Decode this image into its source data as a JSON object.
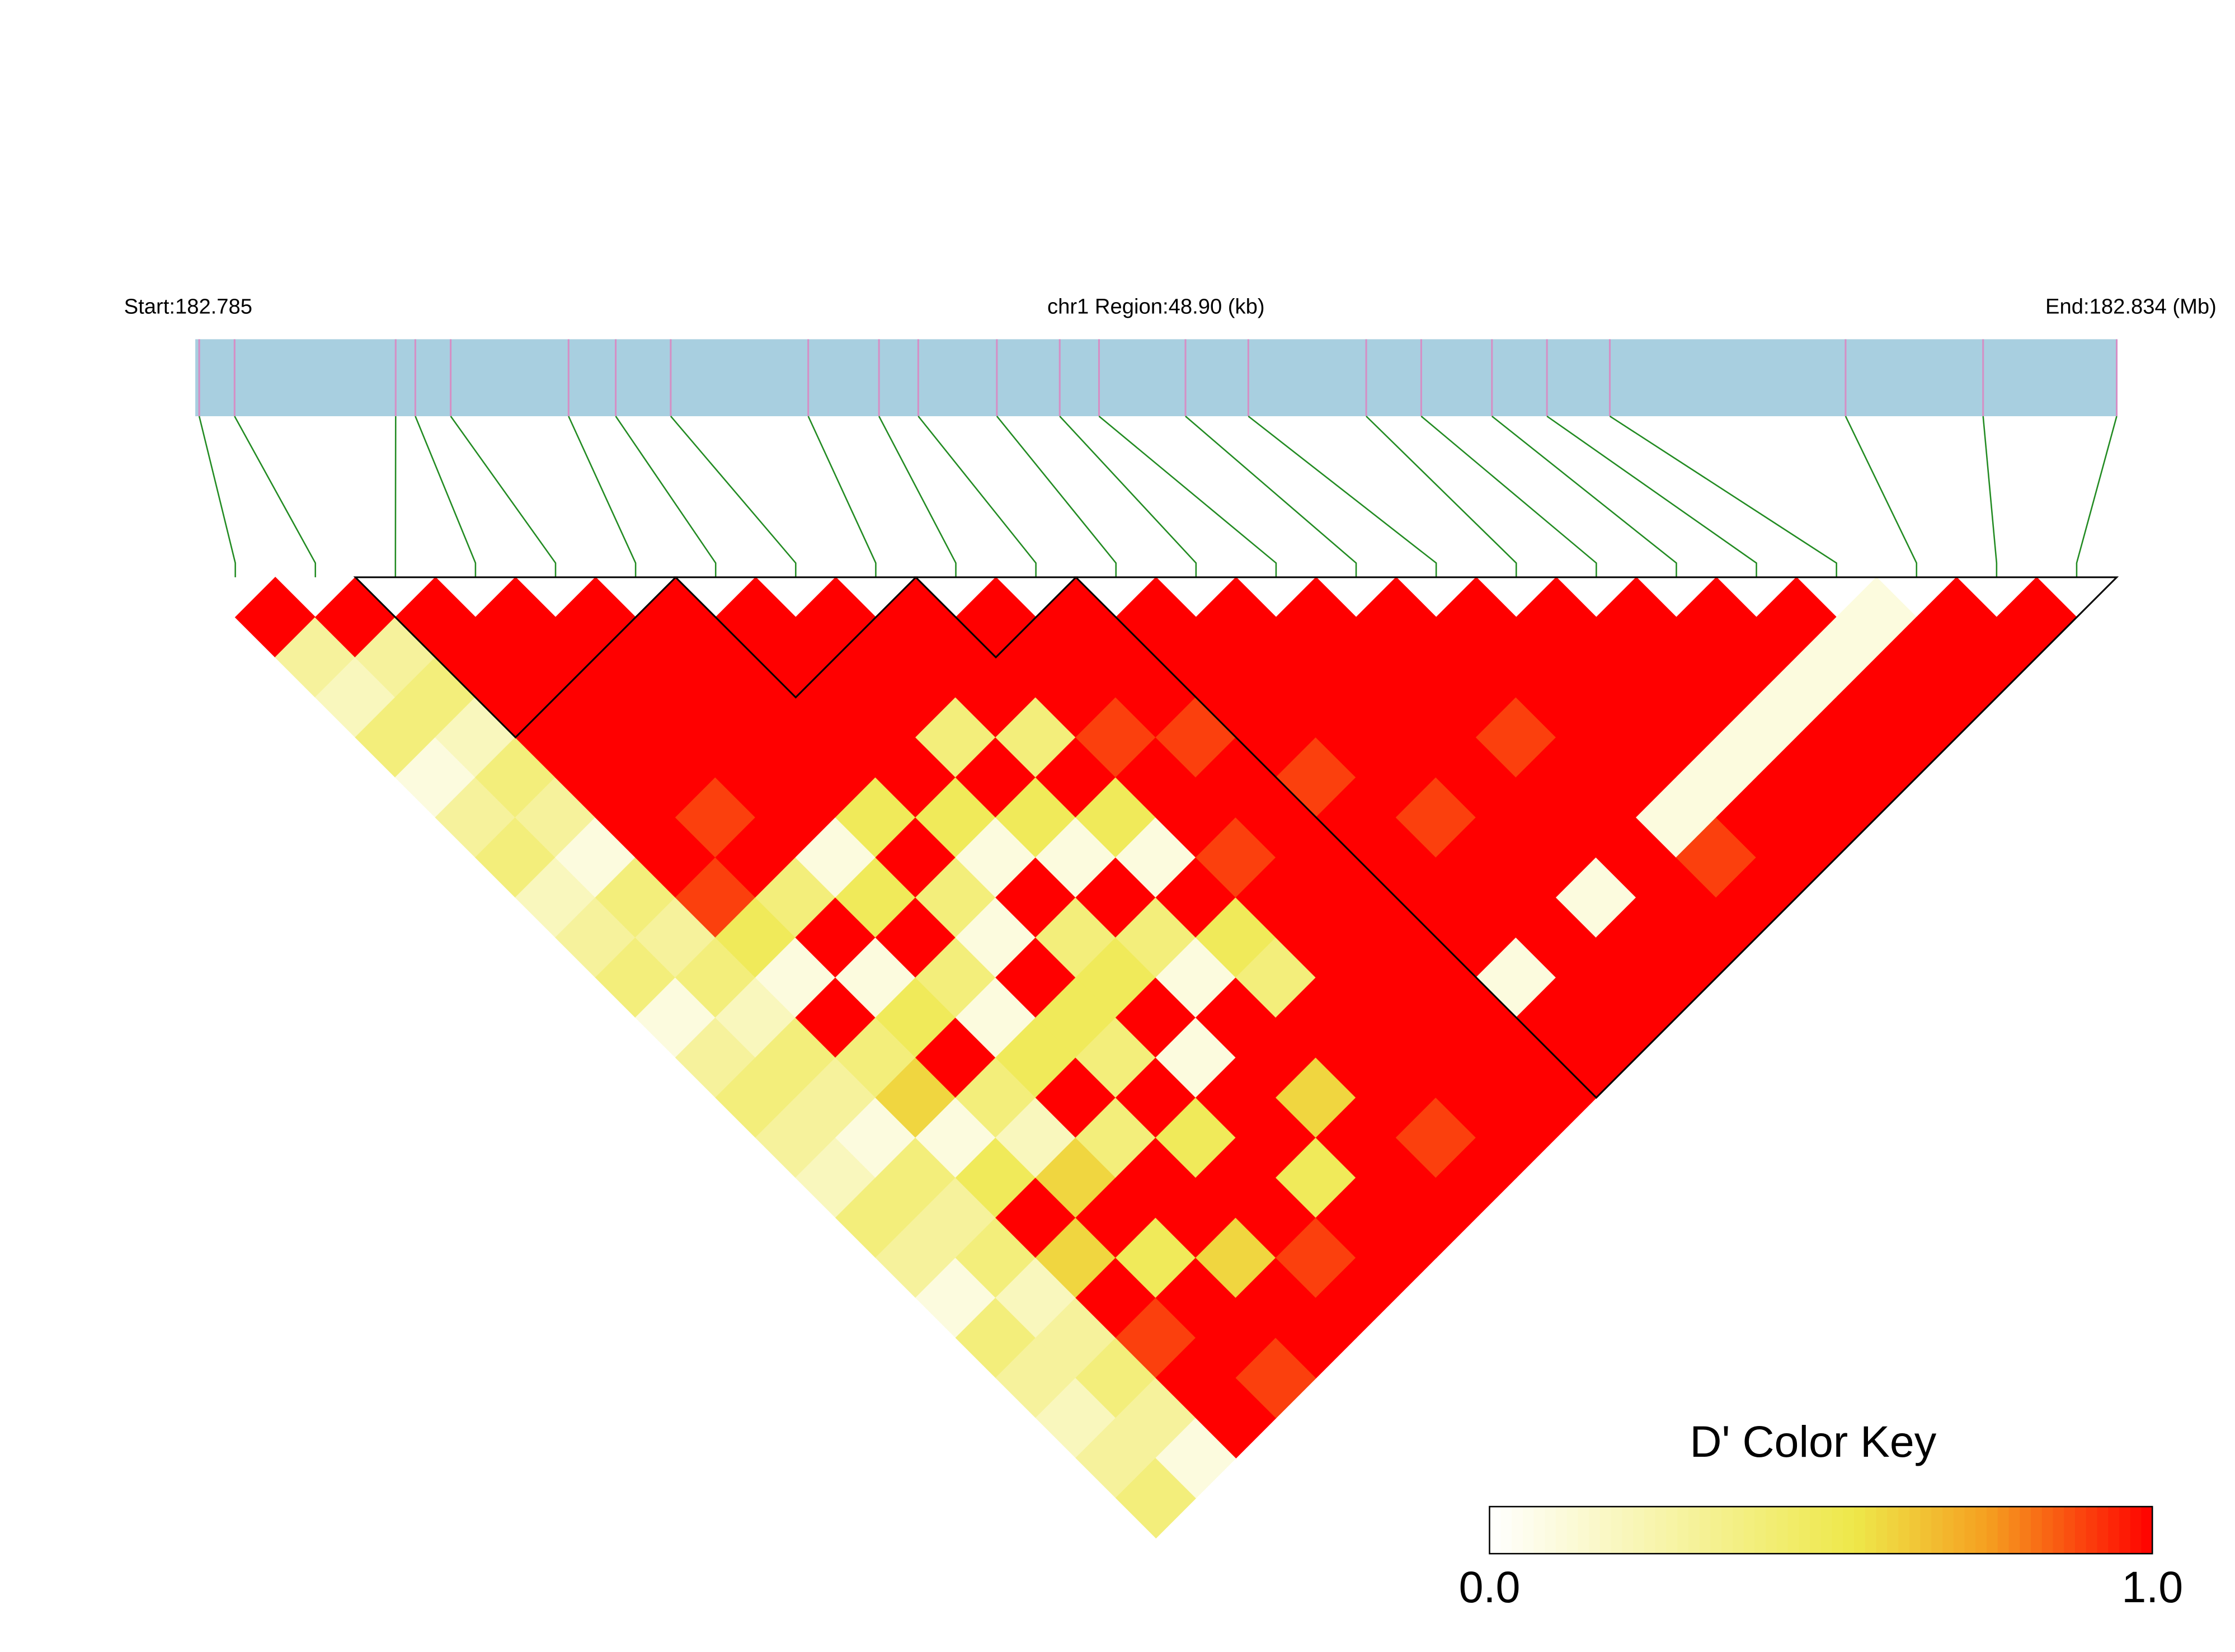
{
  "chart_data": {
    "type": "ld-heatmap",
    "start_label": "Start:182.785",
    "region_label": "chr1 Region:48.90 (kb)",
    "end_label": "End:182.834 (Mb)",
    "key_title": "D' Color Key",
    "xlim": [
      0,
      48.9
    ],
    "positions": [
      0.1,
      1.0,
      5.1,
      5.6,
      6.5,
      9.5,
      10.7,
      12.1,
      15.6,
      17.4,
      18.4,
      20.4,
      22.0,
      23.0,
      25.2,
      26.8,
      29.8,
      31.2,
      33.0,
      34.4,
      36.0,
      42.0,
      45.5,
      48.9
    ],
    "dprime": [
      [
        1.0,
        0.3,
        0.2,
        0.4,
        0.1,
        0.3,
        0.4,
        0.2,
        0.3,
        0.4,
        0.1,
        0.3,
        0.4,
        0.3,
        0.2,
        0.4,
        0.3,
        0.1,
        0.4,
        0.3,
        0.2,
        0.3,
        0.4
      ],
      [
        1.0,
        0.3,
        0.4,
        0.2,
        0.4,
        0.3,
        0.1,
        0.4,
        0.3,
        0.4,
        0.2,
        0.4,
        0.3,
        0.1,
        0.4,
        0.3,
        0.4,
        0.2,
        0.3,
        0.4,
        0.3,
        0.1
      ],
      [
        1.0,
        1.0,
        1.0,
        1.0,
        1.0,
        1.0,
        1.0,
        0.9,
        0.5,
        0.1,
        1.0,
        0.4,
        0.6,
        0.1,
        0.5,
        1.0,
        0.6,
        1.0,
        0.9,
        1.0,
        1.0
      ],
      [
        1.0,
        1.0,
        1.0,
        1.0,
        1.0,
        0.9,
        1.0,
        0.4,
        1.0,
        0.1,
        0.5,
        1.0,
        0.4,
        0.2,
        0.6,
        1.0,
        0.5,
        1.0,
        1.0,
        0.9
      ],
      [
        1.0,
        1.0,
        1.0,
        1.0,
        1.0,
        1.0,
        0.1,
        0.5,
        1.0,
        0.4,
        0.1,
        0.5,
        1.0,
        0.4,
        1.0,
        1.0,
        0.6,
        1.0,
        1.0
      ],
      [
        1.0,
        1.0,
        1.0,
        1.0,
        1.0,
        0.5,
        1.0,
        0.4,
        0.1,
        1.0,
        0.5,
        0.4,
        1.0,
        0.5,
        1.0,
        1.0,
        0.9,
        1.0
      ],
      [
        1.0,
        1.0,
        1.0,
        1.0,
        1.0,
        0.5,
        0.1,
        1.0,
        0.4,
        0.5,
        1.0,
        0.1,
        1.0,
        1.0,
        0.5,
        1.0,
        1.0
      ],
      [
        1.0,
        1.0,
        1.0,
        0.4,
        1.0,
        0.5,
        0.1,
        1.0,
        0.4,
        0.1,
        1.0,
        1.0,
        0.6,
        1.0,
        1.0,
        1.0
      ],
      [
        1.0,
        1.0,
        1.0,
        0.4,
        1.0,
        0.5,
        0.1,
        1.0,
        0.5,
        0.4,
        1.0,
        1.0,
        1.0,
        0.9,
        1.0
      ],
      [
        1.0,
        1.0,
        1.0,
        0.9,
        1.0,
        1.0,
        0.9,
        1.0,
        1.0,
        1.0,
        1.0,
        1.0,
        1.0,
        1.0
      ],
      [
        1.0,
        1.0,
        1.0,
        0.9,
        1.0,
        1.0,
        1.0,
        1.0,
        1.0,
        1.0,
        1.0,
        1.0,
        1.0
      ],
      [
        1.0,
        1.0,
        1.0,
        1.0,
        0.9,
        1.0,
        1.0,
        1.0,
        1.0,
        0.1,
        1.0,
        1.0
      ],
      [
        1.0,
        1.0,
        1.0,
        1.0,
        1.0,
        0.9,
        1.0,
        1.0,
        1.0,
        1.0,
        1.0
      ],
      [
        1.0,
        1.0,
        1.0,
        1.0,
        1.0,
        1.0,
        1.0,
        0.1,
        1.0,
        1.0
      ],
      [
        1.0,
        1.0,
        1.0,
        0.9,
        1.0,
        1.0,
        1.0,
        1.0,
        1.0
      ],
      [
        1.0,
        1.0,
        1.0,
        1.0,
        1.0,
        0.1,
        0.9,
        1.0
      ],
      [
        1.0,
        1.0,
        1.0,
        1.0,
        0.1,
        1.0,
        1.0
      ],
      [
        1.0,
        1.0,
        1.0,
        0.1,
        1.0,
        1.0
      ],
      [
        1.0,
        1.0,
        0.1,
        1.0,
        1.0
      ],
      [
        1.0,
        0.1,
        1.0,
        1.0
      ],
      [
        0.1,
        1.0,
        1.0
      ],
      [
        1.0,
        1.0
      ],
      [
        1.0
      ]
    ],
    "blocks": [
      [
        2,
        5
      ],
      [
        6,
        8
      ],
      [
        9,
        10
      ],
      [
        11,
        23
      ]
    ],
    "bar_color": "#a8cfe0",
    "snp_line_color": "#d58fc5",
    "link_color": "#228b22",
    "color_stops": [
      {
        "at": 0,
        "color": "#ffffff"
      },
      {
        "at": 0.55,
        "color": "#eee84a"
      },
      {
        "at": 0.75,
        "color": "#f5a020"
      },
      {
        "at": 1,
        "color": "#ff0000"
      }
    ],
    "dlim": [
      0,
      1
    ],
    "key_ticks": [
      {
        "value": 0,
        "label": "0.0"
      },
      {
        "value": 1,
        "label": "1.0"
      }
    ]
  }
}
